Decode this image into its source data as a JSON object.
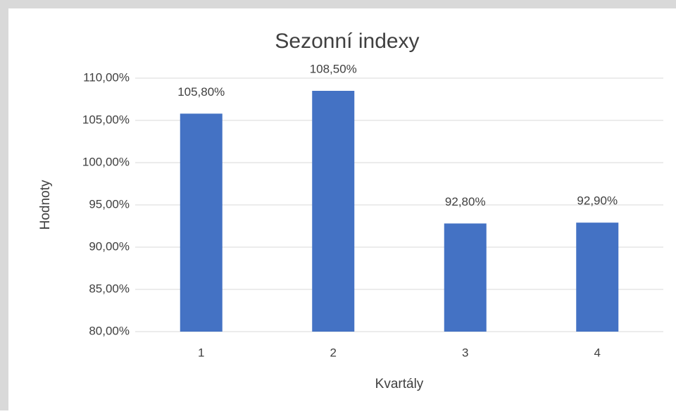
{
  "chart_data": {
    "type": "bar",
    "title": "Sezonní indexy",
    "x_label": "Kvartály",
    "y_label": "Hodnoty",
    "categories": [
      "1",
      "2",
      "3",
      "4"
    ],
    "values": [
      105.8,
      108.5,
      92.8,
      92.9
    ],
    "value_labels": [
      "105,80%",
      "108,50%",
      "92,80%",
      "92,90%"
    ],
    "color": "#4472c4",
    "ylim": [
      80,
      110
    ],
    "yticks": [
      {
        "value": 80,
        "label": "80,00%"
      },
      {
        "value": 85,
        "label": "85,00%"
      },
      {
        "value": 90,
        "label": "90,00%"
      },
      {
        "value": 95,
        "label": "95,00%"
      },
      {
        "value": 100,
        "label": "100,00%"
      },
      {
        "value": 105,
        "label": "105,00%"
      },
      {
        "value": 110,
        "label": "110,00%"
      }
    ],
    "grid": true
  }
}
